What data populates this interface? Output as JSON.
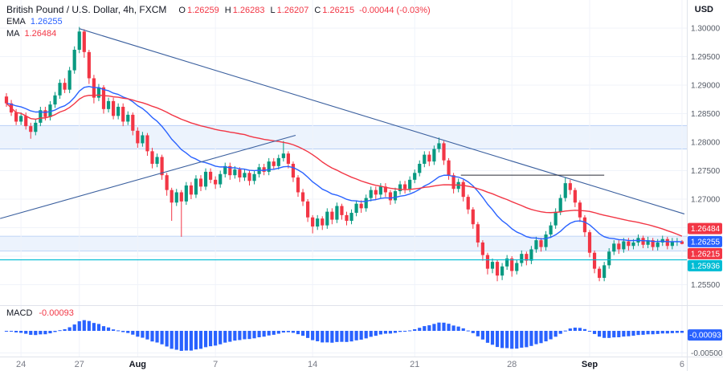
{
  "header": {
    "title": "British Pound / U.S. Dollar, 4h, FXCM",
    "ohlc": {
      "o_label": "O",
      "o": "1.26259",
      "h_label": "H",
      "h": "1.26283",
      "l_label": "L",
      "l": "1.26207",
      "c_label": "C",
      "c": "1.26215",
      "change": "-0.00044 (-0.03%)"
    }
  },
  "indicators": {
    "ema": {
      "name": "EMA",
      "value": "1.26255",
      "color": "#2962ff"
    },
    "ma": {
      "name": "MA",
      "value": "1.26484",
      "color": "#f23645"
    },
    "macd": {
      "name": "MACD",
      "value": "-0.00093",
      "color": "#f23645"
    }
  },
  "axis": {
    "currency": "USD"
  },
  "chart_data": {
    "type": "candlestick",
    "symbol": "British Pound / U.S. Dollar",
    "interval": "4h",
    "exchange": "FXCM",
    "up_color": "#089981",
    "down_color": "#f23645",
    "grid": true,
    "y_axis": {
      "ticks": [
        "1.30000",
        "1.29500",
        "1.29000",
        "1.28500",
        "1.28000",
        "1.27500",
        "1.27000",
        "1.26500",
        "1.26000",
        "1.25500"
      ],
      "range": [
        1.255,
        1.3
      ]
    },
    "x_axis": {
      "ticks": [
        {
          "label": "24",
          "bar": 3,
          "major": false
        },
        {
          "label": "27",
          "bar": 15,
          "major": false
        },
        {
          "label": "Aug",
          "bar": 27,
          "major": true
        },
        {
          "label": "7",
          "bar": 43,
          "major": false
        },
        {
          "label": "14",
          "bar": 63,
          "major": false
        },
        {
          "label": "21",
          "bar": 84,
          "major": false
        },
        {
          "label": "28",
          "bar": 104,
          "major": false
        },
        {
          "label": "Sep",
          "bar": 120,
          "major": true
        },
        {
          "label": "6",
          "bar": 139,
          "major": false
        }
      ]
    },
    "price_labels": [
      {
        "text": "1.26484",
        "price": 1.26484,
        "color": "#f23645"
      },
      {
        "text": "1.26255",
        "price": 1.26255,
        "color": "#2962ff"
      },
      {
        "text": "1.26215",
        "price": 1.26215,
        "color": "#f23645"
      },
      {
        "text": "1.25936",
        "price": 1.25936,
        "color": "#00bcd4"
      }
    ],
    "overlays": [
      {
        "name": "EMA",
        "period": 20,
        "color": "#2962ff"
      },
      {
        "name": "SMA",
        "period": 50,
        "color": "#f23645"
      }
    ],
    "annotations": {
      "trendlines": [
        {
          "b1": 15,
          "p1": 1.2999,
          "b2": 139.5,
          "p2": 1.2674,
          "color": "#3a5f9e"
        },
        {
          "b1": -1.3,
          "p1": 1.2666,
          "b2": 59.5,
          "p2": 1.2812,
          "color": "#3a5f9e"
        }
      ],
      "hsegment": {
        "price": 1.2742,
        "b1": 93.5,
        "b2": 123,
        "color": "#2a2e39"
      },
      "hline": {
        "price": 1.25936,
        "color": "#00bcd4"
      },
      "zones": [
        {
          "from": 1.2788,
          "to": 1.2829,
          "fill": "rgba(73,133,231,0.10)",
          "edge": "rgba(73,133,231,0.35)"
        },
        {
          "from": 1.2609,
          "to": 1.2635,
          "fill": "rgba(73,133,231,0.10)",
          "edge": "rgba(73,133,231,0.30)"
        }
      ]
    },
    "macd": {
      "color": "#2962ff",
      "badge": {
        "text": "-0.00093",
        "value": -0.00093,
        "color": "#2962ff"
      },
      "axis_tick": {
        "text": "-0.00500",
        "value": -0.005
      },
      "fast": 12,
      "slow": 26
    },
    "candles": [
      [
        1.288,
        1.2886,
        1.2862,
        1.2868
      ],
      [
        1.2868,
        1.2874,
        1.2846,
        1.2852
      ],
      [
        1.2852,
        1.2858,
        1.283,
        1.2836
      ],
      [
        1.2836,
        1.2852,
        1.283,
        1.2846
      ],
      [
        1.2846,
        1.2852,
        1.2822,
        1.2828
      ],
      [
        1.2828,
        1.2834,
        1.2806,
        1.2818
      ],
      [
        1.2818,
        1.284,
        1.2812,
        1.2834
      ],
      [
        1.2834,
        1.2862,
        1.2828,
        1.2856
      ],
      [
        1.2856,
        1.2862,
        1.2838,
        1.2844
      ],
      [
        1.2844,
        1.2872,
        1.2838,
        1.2866
      ],
      [
        1.2866,
        1.2888,
        1.286,
        1.2882
      ],
      [
        1.2882,
        1.291,
        1.2876,
        1.2904
      ],
      [
        1.2904,
        1.2912,
        1.2886,
        1.2892
      ],
      [
        1.2892,
        1.2932,
        1.2886,
        1.2926
      ],
      [
        1.2926,
        1.2968,
        1.292,
        1.2962
      ],
      [
        1.2962,
        1.3002,
        1.2956,
        1.2994
      ],
      [
        1.2994,
        1.2998,
        1.2948,
        1.2958
      ],
      [
        1.2958,
        1.2962,
        1.2902,
        1.2912
      ],
      [
        1.2912,
        1.2918,
        1.2868,
        1.2878
      ],
      [
        1.2878,
        1.2902,
        1.2872,
        1.2896
      ],
      [
        1.2896,
        1.29,
        1.285,
        1.2858
      ],
      [
        1.2858,
        1.2878,
        1.2852,
        1.2872
      ],
      [
        1.2872,
        1.2878,
        1.284,
        1.2846
      ],
      [
        1.2846,
        1.2868,
        1.284,
        1.2862
      ],
      [
        1.2862,
        1.2868,
        1.2828,
        1.2836
      ],
      [
        1.2836,
        1.2854,
        1.283,
        1.2848
      ],
      [
        1.2848,
        1.2852,
        1.2812,
        1.282
      ],
      [
        1.282,
        1.2826,
        1.279,
        1.2798
      ],
      [
        1.2798,
        1.2818,
        1.2792,
        1.2812
      ],
      [
        1.2812,
        1.2816,
        1.2776,
        1.2784
      ],
      [
        1.2784,
        1.279,
        1.2754,
        1.2762
      ],
      [
        1.2762,
        1.278,
        1.2756,
        1.2774
      ],
      [
        1.2774,
        1.2778,
        1.2734,
        1.2742
      ],
      [
        1.2742,
        1.2746,
        1.2706,
        1.2716
      ],
      [
        1.2716,
        1.272,
        1.2662,
        1.2694
      ],
      [
        1.2694,
        1.2718,
        1.2688,
        1.2712
      ],
      [
        1.2712,
        1.2716,
        1.2634,
        1.2696
      ],
      [
        1.2696,
        1.273,
        1.269,
        1.2724
      ],
      [
        1.2724,
        1.273,
        1.27,
        1.2708
      ],
      [
        1.2708,
        1.2742,
        1.2702,
        1.2736
      ],
      [
        1.2736,
        1.2742,
        1.2714,
        1.2722
      ],
      [
        1.2722,
        1.2754,
        1.2716,
        1.2748
      ],
      [
        1.2748,
        1.2754,
        1.2728,
        1.2734
      ],
      [
        1.2734,
        1.274,
        1.2718,
        1.2726
      ],
      [
        1.2726,
        1.275,
        1.272,
        1.2744
      ],
      [
        1.2744,
        1.2764,
        1.2738,
        1.2758
      ],
      [
        1.2758,
        1.2764,
        1.2734,
        1.2742
      ],
      [
        1.2742,
        1.2758,
        1.2736,
        1.2752
      ],
      [
        1.2752,
        1.2756,
        1.273,
        1.2738
      ],
      [
        1.2738,
        1.2752,
        1.2732,
        1.2746
      ],
      [
        1.2746,
        1.275,
        1.2724,
        1.2732
      ],
      [
        1.2732,
        1.275,
        1.2726,
        1.2744
      ],
      [
        1.2744,
        1.2762,
        1.2738,
        1.2756
      ],
      [
        1.2756,
        1.2762,
        1.2742,
        1.2748
      ],
      [
        1.2748,
        1.2772,
        1.2742,
        1.2766
      ],
      [
        1.2766,
        1.2772,
        1.2752,
        1.2758
      ],
      [
        1.2758,
        1.2778,
        1.2752,
        1.2772
      ],
      [
        1.2772,
        1.2802,
        1.2766,
        1.278
      ],
      [
        1.278,
        1.2784,
        1.2754,
        1.2762
      ],
      [
        1.2762,
        1.2766,
        1.273,
        1.2738
      ],
      [
        1.2738,
        1.2742,
        1.2704,
        1.2712
      ],
      [
        1.2712,
        1.2718,
        1.2688,
        1.2696
      ],
      [
        1.2696,
        1.27,
        1.266,
        1.2668
      ],
      [
        1.2668,
        1.2672,
        1.264,
        1.2652
      ],
      [
        1.2652,
        1.2672,
        1.2646,
        1.2666
      ],
      [
        1.2666,
        1.267,
        1.2646,
        1.2654
      ],
      [
        1.2654,
        1.2684,
        1.2648,
        1.2678
      ],
      [
        1.2678,
        1.2684,
        1.2656,
        1.2664
      ],
      [
        1.2664,
        1.2694,
        1.2658,
        1.2688
      ],
      [
        1.2688,
        1.2692,
        1.2664,
        1.2672
      ],
      [
        1.2672,
        1.2678,
        1.2654,
        1.2662
      ],
      [
        1.2662,
        1.2682,
        1.2656,
        1.2676
      ],
      [
        1.2676,
        1.2698,
        1.267,
        1.2692
      ],
      [
        1.2692,
        1.2698,
        1.2676,
        1.2684
      ],
      [
        1.2684,
        1.2708,
        1.2678,
        1.2702
      ],
      [
        1.2702,
        1.2722,
        1.2696,
        1.2716
      ],
      [
        1.2716,
        1.2722,
        1.27,
        1.2708
      ],
      [
        1.2708,
        1.2728,
        1.2702,
        1.2722
      ],
      [
        1.2722,
        1.2728,
        1.2704,
        1.2712
      ],
      [
        1.2712,
        1.2716,
        1.269,
        1.2698
      ],
      [
        1.2698,
        1.272,
        1.2692,
        1.2714
      ],
      [
        1.2714,
        1.2732,
        1.2708,
        1.2726
      ],
      [
        1.2726,
        1.2732,
        1.271,
        1.2718
      ],
      [
        1.2718,
        1.274,
        1.2712,
        1.2734
      ],
      [
        1.2734,
        1.2752,
        1.2728,
        1.2746
      ],
      [
        1.2746,
        1.2768,
        1.274,
        1.2762
      ],
      [
        1.2762,
        1.2784,
        1.2756,
        1.2778
      ],
      [
        1.2778,
        1.2784,
        1.2758,
        1.2766
      ],
      [
        1.2766,
        1.2794,
        1.276,
        1.2788
      ],
      [
        1.2788,
        1.2808,
        1.2782,
        1.2798
      ],
      [
        1.2798,
        1.2802,
        1.276,
        1.2768
      ],
      [
        1.2768,
        1.2772,
        1.2734,
        1.2742
      ],
      [
        1.2742,
        1.2746,
        1.271,
        1.2718
      ],
      [
        1.2718,
        1.2736,
        1.2712,
        1.273
      ],
      [
        1.273,
        1.2734,
        1.2696,
        1.2704
      ],
      [
        1.2704,
        1.2708,
        1.2674,
        1.2682
      ],
      [
        1.2682,
        1.2686,
        1.2648,
        1.2656
      ],
      [
        1.2656,
        1.266,
        1.2616,
        1.2624
      ],
      [
        1.2624,
        1.2628,
        1.2592,
        1.2602
      ],
      [
        1.2602,
        1.2606,
        1.2568,
        1.2578
      ],
      [
        1.2578,
        1.2596,
        1.257,
        1.259
      ],
      [
        1.259,
        1.2594,
        1.2556,
        1.2566
      ],
      [
        1.2566,
        1.2588,
        1.2558,
        1.2582
      ],
      [
        1.2582,
        1.2602,
        1.2576,
        1.2596
      ],
      [
        1.2596,
        1.26,
        1.2564,
        1.2574
      ],
      [
        1.2574,
        1.2594,
        1.2568,
        1.2588
      ],
      [
        1.2588,
        1.261,
        1.2582,
        1.2604
      ],
      [
        1.2604,
        1.2608,
        1.2584,
        1.2592
      ],
      [
        1.2592,
        1.2618,
        1.2586,
        1.2612
      ],
      [
        1.2612,
        1.2634,
        1.2606,
        1.2628
      ],
      [
        1.2628,
        1.2632,
        1.2608,
        1.2616
      ],
      [
        1.2616,
        1.2644,
        1.261,
        1.2638
      ],
      [
        1.2638,
        1.266,
        1.2632,
        1.2654
      ],
      [
        1.2654,
        1.2684,
        1.2648,
        1.2678
      ],
      [
        1.2678,
        1.2708,
        1.2672,
        1.2702
      ],
      [
        1.2702,
        1.2738,
        1.2696,
        1.2728
      ],
      [
        1.2728,
        1.2734,
        1.2708,
        1.2716
      ],
      [
        1.2716,
        1.272,
        1.2686,
        1.2694
      ],
      [
        1.2694,
        1.2698,
        1.266,
        1.2668
      ],
      [
        1.2668,
        1.2672,
        1.2634,
        1.2642
      ],
      [
        1.2642,
        1.2646,
        1.2598,
        1.2606
      ],
      [
        1.2606,
        1.261,
        1.257,
        1.2578
      ],
      [
        1.2578,
        1.2582,
        1.2556,
        1.2562
      ],
      [
        1.2562,
        1.259,
        1.2556,
        1.2584
      ],
      [
        1.2584,
        1.2614,
        1.2578,
        1.2608
      ],
      [
        1.2608,
        1.2628,
        1.2602,
        1.2622
      ],
      [
        1.2622,
        1.2628,
        1.2604,
        1.2612
      ],
      [
        1.2612,
        1.2632,
        1.2606,
        1.2626
      ],
      [
        1.2626,
        1.2632,
        1.261,
        1.2618
      ],
      [
        1.2618,
        1.263,
        1.2612,
        1.2624
      ],
      [
        1.2624,
        1.2638,
        1.2618,
        1.2632
      ],
      [
        1.2632,
        1.2636,
        1.2614,
        1.262
      ],
      [
        1.262,
        1.2634,
        1.2614,
        1.2628
      ],
      [
        1.2628,
        1.2632,
        1.261,
        1.2616
      ],
      [
        1.2616,
        1.263,
        1.261,
        1.2624
      ],
      [
        1.2624,
        1.2636,
        1.2618,
        1.263
      ],
      [
        1.263,
        1.2634,
        1.2612,
        1.2618
      ],
      [
        1.2618,
        1.2632,
        1.2612,
        1.2626
      ],
      [
        1.2626,
        1.2632,
        1.2618,
        1.2626
      ],
      [
        1.26259,
        1.26283,
        1.26207,
        1.26215
      ]
    ]
  }
}
